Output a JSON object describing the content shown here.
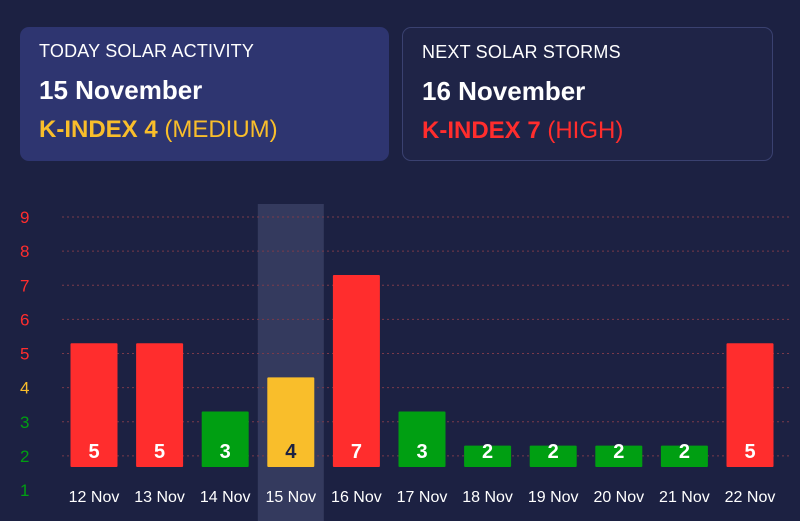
{
  "today_card": {
    "label": "TODAY SOLAR ACTIVITY",
    "date": "15 November",
    "kindex_prefix": "K-INDEX 4",
    "kindex_level": "(MEDIUM)",
    "color": "#f9be2b"
  },
  "next_card": {
    "label": "NEXT SOLAR STORMS",
    "date": "16 November",
    "kindex_prefix": "K-INDEX 7",
    "kindex_level": "(HIGH)",
    "color": "#ff2d2d"
  },
  "colors": {
    "high": "#ff2d2d",
    "medium": "#f9be2b",
    "low": "#009f12",
    "grid": "#7a3a4a",
    "highlight": "#343a5e"
  },
  "chart_data": {
    "type": "bar",
    "categories": [
      "12 Nov",
      "13 Nov",
      "14 Nov",
      "15 Nov",
      "16 Nov",
      "17 Nov",
      "18 Nov",
      "19 Nov",
      "20 Nov",
      "21 Nov",
      "22 Nov"
    ],
    "values": [
      5,
      5,
      3,
      4,
      7,
      3,
      2,
      2,
      2,
      2,
      5
    ],
    "y_ticks": [
      "1",
      "2",
      "3",
      "4",
      "5",
      "6",
      "7",
      "8",
      "9"
    ],
    "ylim": [
      1,
      9
    ],
    "highlighted_category": "15 Nov",
    "grid": true,
    "title": "",
    "xlabel": "",
    "ylabel": ""
  }
}
